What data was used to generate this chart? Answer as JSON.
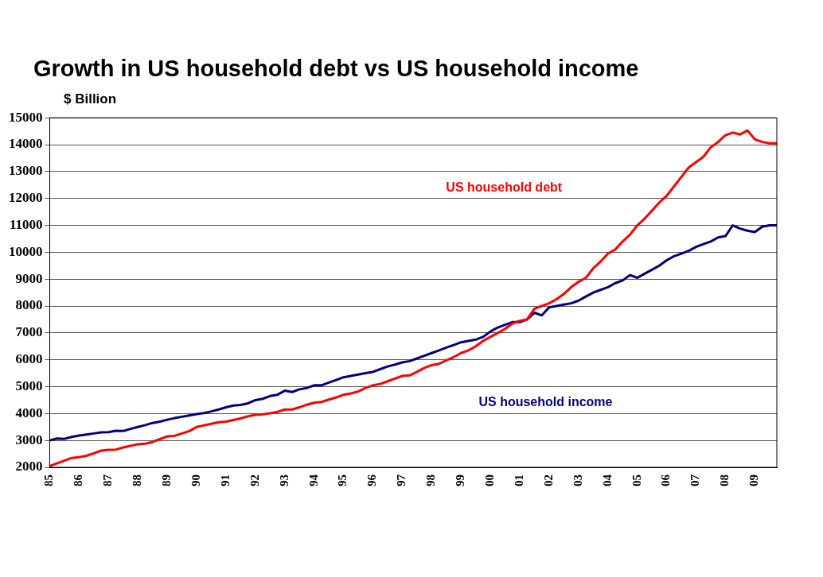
{
  "chart_data": {
    "type": "line",
    "title": "Growth in US household debt vs US household income",
    "ylabel": "$ Billion",
    "categories": [
      "85",
      null,
      null,
      null,
      "86",
      null,
      null,
      null,
      "87",
      null,
      null,
      null,
      "88",
      null,
      null,
      null,
      "89",
      null,
      null,
      null,
      "90",
      null,
      null,
      null,
      "91",
      null,
      null,
      null,
      "92",
      null,
      null,
      null,
      "93",
      null,
      null,
      null,
      "94",
      null,
      null,
      null,
      "95",
      null,
      null,
      null,
      "96",
      null,
      null,
      null,
      "97",
      null,
      null,
      null,
      "98",
      null,
      null,
      null,
      "99",
      null,
      null,
      null,
      "00",
      null,
      null,
      null,
      "01",
      null,
      null,
      null,
      "02",
      null,
      null,
      null,
      "03",
      null,
      null,
      null,
      "04",
      null,
      null,
      null,
      "05",
      null,
      null,
      null,
      "06",
      null,
      null,
      null,
      "07",
      null,
      null,
      null,
      "08",
      null,
      null,
      null,
      "09",
      null,
      null,
      null
    ],
    "series": [
      {
        "name": "US household debt",
        "color": "#ff0000",
        "values": [
          2050,
          2150,
          2250,
          2350,
          2380,
          2430,
          2520,
          2620,
          2650,
          2660,
          2740,
          2800,
          2860,
          2880,
          2940,
          3050,
          3150,
          3170,
          3260,
          3350,
          3500,
          3560,
          3620,
          3680,
          3700,
          3760,
          3820,
          3900,
          3950,
          3970,
          4010,
          4060,
          4150,
          4150,
          4230,
          4330,
          4400,
          4430,
          4520,
          4600,
          4700,
          4750,
          4820,
          4950,
          5050,
          5100,
          5200,
          5300,
          5400,
          5420,
          5550,
          5700,
          5800,
          5850,
          5980,
          6100,
          6250,
          6350,
          6500,
          6700,
          6850,
          7000,
          7150,
          7350,
          7450,
          7500,
          7900,
          8000,
          8100,
          8250,
          8450,
          8700,
          8900,
          9050,
          9400,
          9650,
          9950,
          10100,
          10400,
          10650,
          11000,
          11250,
          11550,
          11850,
          12100,
          12450,
          12800,
          13150,
          13350,
          13550,
          13900,
          14100,
          14350,
          14450,
          14380,
          14530,
          14200,
          14100,
          14050,
          14050
        ]
      },
      {
        "name": "US household income",
        "color": "#000080",
        "values": [
          3000,
          3070,
          3060,
          3130,
          3180,
          3220,
          3260,
          3300,
          3310,
          3360,
          3350,
          3430,
          3500,
          3570,
          3650,
          3700,
          3770,
          3830,
          3880,
          3930,
          3980,
          4020,
          4080,
          4150,
          4230,
          4300,
          4320,
          4380,
          4500,
          4550,
          4650,
          4700,
          4850,
          4800,
          4900,
          4950,
          5050,
          5050,
          5150,
          5250,
          5350,
          5400,
          5450,
          5500,
          5550,
          5650,
          5750,
          5820,
          5900,
          5950,
          6050,
          6150,
          6250,
          6350,
          6450,
          6550,
          6650,
          6700,
          6750,
          6850,
          7050,
          7200,
          7300,
          7400,
          7400,
          7500,
          7750,
          7650,
          7950,
          8000,
          8050,
          8100,
          8200,
          8350,
          8500,
          8600,
          8700,
          8850,
          8950,
          9150,
          9050,
          9200,
          9350,
          9500,
          9700,
          9850,
          9950,
          10050,
          10200,
          10300,
          10400,
          10550,
          10600,
          11000,
          10880,
          10800,
          10750,
          10950,
          11000,
          11000
        ]
      }
    ],
    "ylim": [
      2000,
      15000
    ],
    "yticks": [
      2000,
      3000,
      4000,
      5000,
      6000,
      7000,
      8000,
      9000,
      10000,
      11000,
      12000,
      13000,
      14000,
      15000
    ],
    "grid": "y",
    "legend": false,
    "marker": "none",
    "line_style": "solid"
  }
}
